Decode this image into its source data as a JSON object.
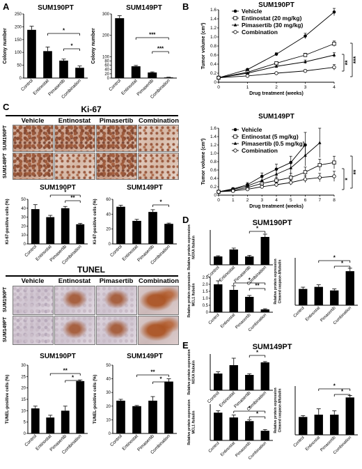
{
  "panels": {
    "A": {
      "label": "A"
    },
    "B": {
      "label": "B"
    },
    "C": {
      "label": "C"
    },
    "D": {
      "label": "D"
    },
    "E": {
      "label": "E"
    }
  },
  "charts": {
    "A1": {
      "type": "bar",
      "title": "SUM190PT",
      "ylabel": "Colony number",
      "categories": [
        "Control",
        "Entinostat",
        "Pimasertib",
        "Combination"
      ],
      "values": [
        188,
        105,
        68,
        40
      ],
      "errors": [
        14,
        16,
        6,
        7
      ],
      "ylim": [
        0,
        250
      ],
      "yticks": [
        0,
        50,
        100,
        150,
        200,
        250
      ],
      "sig": [
        {
          "label": "*"
        },
        {
          "label": "*"
        }
      ]
    },
    "A2": {
      "type": "bar",
      "title": "SUM149PT",
      "ylabel": "Colony number",
      "categories": [
        "Control",
        "Entinostat",
        "Pimasertib",
        "Combination"
      ],
      "values": [
        280,
        55,
        26,
        3
      ],
      "errors": [
        12,
        4,
        3,
        1
      ],
      "ylim": [
        0,
        300
      ],
      "yticks": [
        0,
        20,
        40,
        60,
        80,
        100,
        200,
        300
      ],
      "sig": [
        {
          "label": "***"
        },
        {
          "label": "***"
        }
      ]
    },
    "B1": {
      "type": "line",
      "title": "SUM190PT",
      "xlabel": "Drug treatment (weeks)",
      "ylabel": "Tumor volume (cm³)",
      "xlim": [
        0,
        4
      ],
      "ylim": [
        0,
        1.6
      ],
      "yticks": [
        "0",
        "0.2",
        "0.4",
        "0.6",
        "0.8",
        "1.0",
        "1.2",
        "1.4",
        "1.6"
      ],
      "xticks": [
        "0",
        "1",
        "2",
        "3",
        "4"
      ],
      "series": [
        {
          "name": "Vehicle",
          "x": [
            0,
            1,
            2,
            3,
            4
          ],
          "y": [
            0.1,
            0.28,
            0.62,
            1.02,
            1.55
          ],
          "err": [
            0.01,
            0.02,
            0.03,
            0.06,
            0.08
          ],
          "marker": "filled-circle"
        },
        {
          "name": "Entinostat (20 mg/kg)",
          "x": [
            0,
            1,
            2,
            3,
            4
          ],
          "y": [
            0.1,
            0.22,
            0.42,
            0.6,
            0.85
          ],
          "err": [
            0.01,
            0.02,
            0.03,
            0.04,
            0.06
          ],
          "marker": "open-square"
        },
        {
          "name": "Pimasertib (30 mg/kg)",
          "x": [
            0,
            1,
            2,
            3,
            4
          ],
          "y": [
            0.1,
            0.2,
            0.35,
            0.45,
            0.6
          ],
          "err": [
            0.01,
            0.02,
            0.03,
            0.04,
            0.05
          ],
          "marker": "filled-triangle"
        },
        {
          "name": "Combination",
          "x": [
            0,
            1,
            2,
            3,
            4
          ],
          "y": [
            0.1,
            0.14,
            0.2,
            0.25,
            0.33
          ],
          "err": [
            0.01,
            0.02,
            0.02,
            0.03,
            0.06
          ],
          "marker": "open-circle"
        }
      ],
      "sig": [
        "**",
        "***"
      ]
    },
    "B2": {
      "type": "line",
      "title": "SUM149PT",
      "xlabel": "Drug treatment (weeks)",
      "ylabel": "Tumor volume (cm³)",
      "xlim": [
        0,
        8
      ],
      "ylim": [
        0,
        1.6
      ],
      "yticks": [
        "0",
        "0.2",
        "0.4",
        "0.6",
        "0.8",
        "1.0",
        "1.2",
        "1.4",
        "1.6"
      ],
      "xticks": [
        "0",
        "1",
        "2",
        "3",
        "4",
        "5",
        "6",
        "7",
        "8"
      ],
      "series": [
        {
          "name": "Vehicle",
          "x": [
            0,
            1,
            2,
            3,
            4,
            5,
            6
          ],
          "y": [
            0.08,
            0.15,
            0.25,
            0.45,
            0.62,
            0.78,
            1.2
          ],
          "err": [
            0.01,
            0.03,
            0.05,
            0.08,
            0.12,
            0.15,
            0.3
          ],
          "marker": "filled-circle"
        },
        {
          "name": "Entinostat (5 mg/kg)",
          "x": [
            0,
            1,
            2,
            3,
            4,
            5,
            6,
            7,
            8
          ],
          "y": [
            0.08,
            0.12,
            0.18,
            0.28,
            0.35,
            0.42,
            0.55,
            0.72,
            0.78
          ],
          "err": [
            0.01,
            0.02,
            0.04,
            0.06,
            0.08,
            0.1,
            0.12,
            0.14,
            0.15
          ],
          "marker": "open-square"
        },
        {
          "name": "Pimasertib (0.5 mg/kg)",
          "x": [
            0,
            1,
            2,
            3,
            4,
            5,
            6,
            7
          ],
          "y": [
            0.08,
            0.14,
            0.22,
            0.35,
            0.5,
            0.65,
            0.95,
            1.25
          ],
          "err": [
            0.01,
            0.03,
            0.05,
            0.08,
            0.12,
            0.15,
            0.25,
            0.35
          ],
          "marker": "filled-triangle"
        },
        {
          "name": "Combination",
          "x": [
            0,
            1,
            2,
            3,
            4,
            5,
            6,
            7,
            8
          ],
          "y": [
            0.08,
            0.1,
            0.14,
            0.2,
            0.25,
            0.3,
            0.38,
            0.42,
            0.45
          ],
          "err": [
            0.01,
            0.02,
            0.03,
            0.04,
            0.05,
            0.06,
            0.08,
            0.1,
            0.12
          ],
          "marker": "open-circle"
        }
      ],
      "sig": [
        "*",
        "**"
      ]
    },
    "C1": {
      "type": "bar",
      "title": "SUM190PT",
      "ylabel": "Ki-67-positive cells (%)",
      "categories": [
        "Control",
        "Entinostat",
        "Pimasertib",
        "Combination"
      ],
      "values": [
        39,
        30,
        40,
        22
      ],
      "errors": [
        5,
        2,
        2,
        1
      ],
      "ylim": [
        0,
        50
      ],
      "yticks": [
        0,
        10,
        20,
        30,
        40,
        50
      ],
      "sig": [
        {
          "label": "*"
        },
        {
          "label": "**"
        }
      ]
    },
    "C2": {
      "type": "bar",
      "title": "SUM149PT",
      "ylabel": "Ki-67-positive cells (%)",
      "categories": [
        "Control",
        "Entinostat",
        "Pimasertib",
        "Combination"
      ],
      "values": [
        50,
        31,
        43,
        27
      ],
      "errors": [
        2,
        2,
        3,
        1
      ],
      "ylim": [
        0,
        60
      ],
      "yticks": [
        0,
        20,
        40,
        60
      ],
      "sig": [
        {
          "label": "*"
        }
      ]
    },
    "C3": {
      "type": "bar",
      "title": "SUM190PT",
      "ylabel": "TUNEL-positive cells (%)",
      "categories": [
        "Control",
        "Entinostat",
        "Pimasertib",
        "Combination"
      ],
      "values": [
        11,
        7,
        10,
        23
      ],
      "errors": [
        1,
        1,
        2,
        0.5
      ],
      "ylim": [
        0,
        30
      ],
      "yticks": [
        0,
        5,
        10,
        15,
        20,
        25,
        30
      ],
      "sig": [
        {
          "label": "**"
        },
        {
          "label": "*"
        }
      ]
    },
    "C4": {
      "type": "bar",
      "title": "SUM149PT",
      "ylabel": "TUNEL-positive cells (%)",
      "categories": [
        "Control",
        "Entinostat",
        "Pimasertib",
        "Combination"
      ],
      "values": [
        24,
        20,
        24,
        38
      ],
      "errors": [
        1,
        0.5,
        3,
        2
      ],
      "ylim": [
        0,
        50
      ],
      "yticks": [
        0,
        10,
        20,
        30,
        40,
        50
      ],
      "sig": [
        {
          "label": "**"
        },
        {
          "label": "*"
        }
      ]
    },
    "D1": {
      "type": "bar",
      "ylabel": "Relative protein expression NOXA/tubulin",
      "categories": [
        "Control",
        "Entinostat",
        "Pimasertib",
        "Combination"
      ],
      "values": [
        0.6,
        1.1,
        0.6,
        2.0
      ],
      "errors": [
        0.05,
        0.1,
        0.08,
        0.2
      ],
      "ylim": [
        0,
        2.5
      ],
      "yticks": [],
      "sig": [
        {
          "label": "*"
        }
      ]
    },
    "D2": {
      "type": "bar",
      "ylabel": "Relative protein expression MCL1/tubulin",
      "categories": [
        "Control",
        "Entinostat",
        "Pimasertib",
        "Combination"
      ],
      "values": [
        2.0,
        1.6,
        1.1,
        0.2
      ],
      "errors": [
        0.25,
        0.3,
        0.1,
        0.05
      ],
      "ylim": [
        0,
        2.5
      ],
      "yticks": [
        "0",
        "0.5",
        "1.0",
        "1.5",
        "2.0",
        "2.5"
      ],
      "sig": [
        {
          "label": "*"
        },
        {
          "label": "**"
        }
      ]
    },
    "D3": {
      "type": "bar",
      "ylabel": "Relative protein expression Cleaved caspase-8/tubulin",
      "categories": [
        "Control",
        "Entinostat",
        "Pimasertib",
        "Combination"
      ],
      "values": [
        0.55,
        0.62,
        0.5,
        1.15
      ],
      "errors": [
        0.06,
        0.07,
        0.05,
        0.1
      ],
      "ylim": [
        0,
        1.6
      ],
      "yticks": [],
      "sig": [
        {
          "label": "*"
        },
        {
          "label": "*"
        }
      ]
    },
    "E1": {
      "type": "bar",
      "ylabel": "Relative protein expression NOXA/tubulin",
      "categories": [
        "Control",
        "Entinostat",
        "Pimasertib",
        "Combination"
      ],
      "values": [
        0.6,
        0.9,
        0.55,
        1.0
      ],
      "errors": [
        0.06,
        0.25,
        0.04,
        0.03
      ],
      "ylim": [
        0,
        1.3
      ],
      "yticks": [],
      "sig": [
        {
          "label": "*"
        }
      ]
    },
    "E2": {
      "type": "bar",
      "ylabel": "Relative protein expression MCL1/tubulin",
      "categories": [
        "Control",
        "Entinostat",
        "Pimasertib",
        "Combination"
      ],
      "values": [
        1.15,
        0.95,
        0.8,
        0.4
      ],
      "errors": [
        0.08,
        0.1,
        0.06,
        0.05
      ],
      "ylim": [
        0,
        1.5
      ],
      "yticks": [],
      "sig": [
        {
          "label": "*"
        },
        {
          "label": "*"
        }
      ]
    },
    "E3": {
      "type": "bar",
      "ylabel": "Relative protein expression Cleaved caspase-8/tubulin",
      "categories": [
        "Control",
        "Entinostat",
        "Pimasertib",
        "Combination"
      ],
      "values": [
        0.55,
        0.62,
        0.62,
        1.15
      ],
      "errors": [
        0.04,
        0.18,
        0.12,
        0.06
      ],
      "ylim": [
        0,
        1.5
      ],
      "yticks": [],
      "sig": [
        {
          "label": "*"
        },
        {
          "label": "*"
        }
      ]
    }
  },
  "micro": {
    "ki67_title": "Ki-67",
    "tunel_title": "TUNEL",
    "columns": [
      "Vehicle",
      "Entinostat",
      "Pimasertib",
      "Combination"
    ],
    "rows": [
      "SUM190PT",
      "SUM149PT"
    ]
  },
  "headings": {
    "D": "SUM190PT",
    "E": "SUM149PT"
  }
}
